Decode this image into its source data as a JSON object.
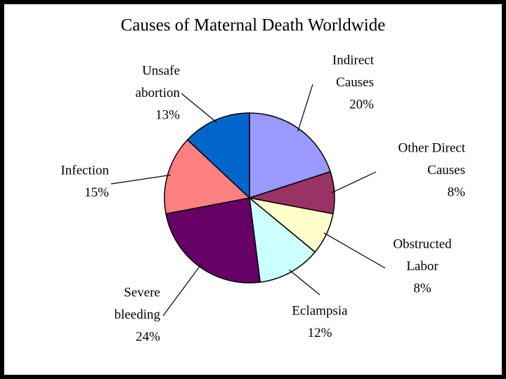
{
  "chart_data": {
    "type": "pie",
    "title": "Causes of Maternal Death Worldwide",
    "categories": [
      [
        "Indirect",
        "Causes"
      ],
      [
        "Other Direct",
        "Causes"
      ],
      [
        "Obstructed",
        "Labor"
      ],
      [
        "Eclampsia"
      ],
      [
        "Severe",
        "bleeding"
      ],
      [
        "Infection"
      ],
      [
        "Unsafe",
        "abortion"
      ]
    ],
    "values": [
      20,
      8,
      8,
      12,
      24,
      15,
      13
    ],
    "value_labels": [
      "20%",
      "8%",
      "8%",
      "12%",
      "24%",
      "15%",
      "13%"
    ],
    "colors": [
      "#9999ff",
      "#993366",
      "#ffffcc",
      "#ccffff",
      "#660066",
      "#ff8080",
      "#0066cc"
    ]
  }
}
